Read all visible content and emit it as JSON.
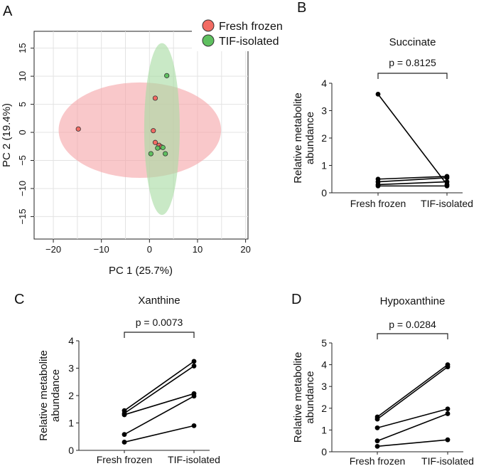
{
  "figure": {
    "panel_a_letter": "A",
    "panel_b_letter": "B",
    "panel_c_letter": "C",
    "panel_d_letter": "D"
  },
  "colors": {
    "fresh_frozen_fill": "#f26b63",
    "fresh_frozen_ellipse": "#f5a6aa",
    "tif_fill": "#5fc060",
    "tif_ellipse": "#a8dba3",
    "points": "#000000"
  },
  "chart_data": [
    {
      "id": "A",
      "type": "scatter",
      "title": "",
      "xlabel": "PC 1 (25.7%)",
      "ylabel": "PC 2 (19.4%)",
      "xlim": [
        -24,
        20.5
      ],
      "ylim": [
        -19,
        18
      ],
      "xticks": [
        -20,
        -10,
        0,
        10,
        20
      ],
      "yticks": [
        -15,
        -10,
        -5,
        0,
        5,
        10,
        15
      ],
      "grid": true,
      "legend": "top-right",
      "series": [
        {
          "name": "Fresh frozen",
          "points": [
            [
              -14.8,
              0.6
            ],
            [
              1.2,
              6.1
            ],
            [
              0.8,
              0.3
            ],
            [
              1.2,
              -1.8
            ],
            [
              2.0,
              -2.3
            ],
            [
              2.5,
              -2.6
            ]
          ],
          "ellipse": {
            "cx": -2.0,
            "cy": 0.4,
            "rx": 16.9,
            "ry": 8.5
          }
        },
        {
          "name": "TIF-isolated",
          "points": [
            [
              3.6,
              10.1
            ],
            [
              1.7,
              -2.8
            ],
            [
              2.8,
              -2.7
            ],
            [
              0.3,
              -3.8
            ],
            [
              3.3,
              -3.8
            ]
          ],
          "ellipse": {
            "cx": 2.6,
            "cy": 0.6,
            "rx": 3.7,
            "ry": 15.3
          }
        }
      ]
    },
    {
      "id": "B",
      "type": "line",
      "title": "Succinate",
      "categories": [
        "Fresh frozen",
        "TIF-isolated"
      ],
      "ylabel": "Relative metabolite abundance",
      "ylim": [
        0,
        4
      ],
      "yticks": [
        0,
        1,
        2,
        3,
        4
      ],
      "pvalue": "p = 0.8125",
      "pairs": [
        [
          3.6,
          0.3
        ],
        [
          0.5,
          0.6
        ],
        [
          0.4,
          0.55
        ],
        [
          0.3,
          0.4
        ],
        [
          0.25,
          0.25
        ]
      ]
    },
    {
      "id": "C",
      "type": "line",
      "title": "Xanthine",
      "categories": [
        "Fresh frozen",
        "TIF-isolated"
      ],
      "ylabel": "Relative metabolite abundance",
      "ylim": [
        0,
        4
      ],
      "yticks": [
        0,
        1,
        2,
        3,
        4
      ],
      "pvalue": "p = 0.0073",
      "pairs": [
        [
          1.45,
          3.25
        ],
        [
          1.35,
          3.08
        ],
        [
          1.3,
          2.07
        ],
        [
          0.58,
          1.98
        ],
        [
          0.3,
          0.9
        ]
      ]
    },
    {
      "id": "D",
      "type": "line",
      "title": "Hypoxanthine",
      "categories": [
        "Fresh frozen",
        "TIF-isolated"
      ],
      "ylabel": "Relative metabolite abundance",
      "ylim": [
        0,
        5
      ],
      "yticks": [
        0,
        1,
        2,
        3,
        4,
        5
      ],
      "pvalue": "p = 0.0284",
      "pairs": [
        [
          1.6,
          4.0
        ],
        [
          1.5,
          3.9
        ],
        [
          1.1,
          1.97
        ],
        [
          0.5,
          1.75
        ],
        [
          0.25,
          0.55
        ]
      ]
    }
  ]
}
